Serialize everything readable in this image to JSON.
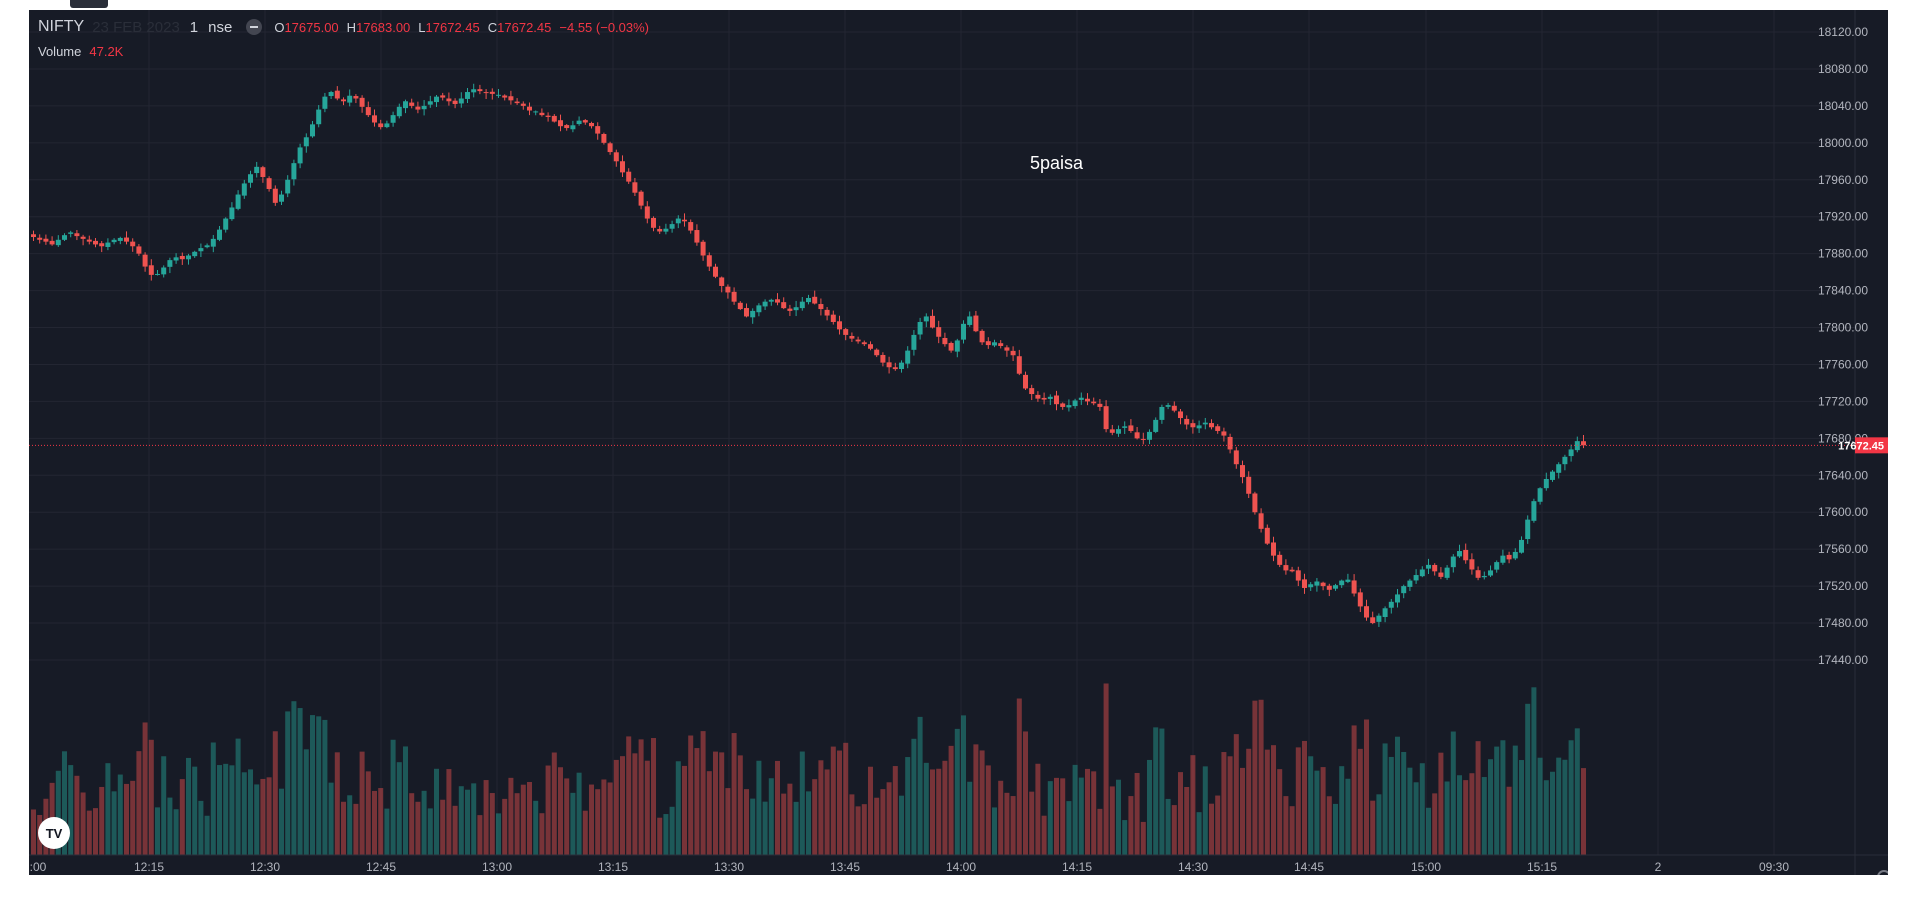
{
  "legend": {
    "symbol": "NIFTY",
    "date": "23 FEB 2023",
    "interval": "1",
    "exchange": "nse",
    "open_label": "O",
    "open": "17675.00",
    "high_label": "H",
    "high": "17683.00",
    "low_label": "L",
    "low": "17672.45",
    "close_label": "C",
    "close": "17672.45",
    "change": "−4.55 (−0.03%)"
  },
  "volume_legend": {
    "label": "Volume",
    "value": "47.2K"
  },
  "watermark": "5paisa",
  "logo_text": "TV",
  "icons": {
    "hide": "minus-circle-icon",
    "logo": "tradingview-logo-icon",
    "settings": "gear-icon"
  },
  "colors": {
    "background": "#171b26",
    "up": "#26a69a",
    "down": "#ef5350",
    "grid": "#232632",
    "text": "#b2b5be",
    "price_line": "#f23645"
  },
  "chart_data": {
    "type": "candlestick",
    "title": "",
    "xlabel": "",
    "ylabel": "",
    "ylim": [
      17400,
      18140
    ],
    "y_ticks": [
      "18120.00",
      "18080.00",
      "18040.00",
      "18000.00",
      "17960.00",
      "17920.00",
      "17880.00",
      "17840.00",
      "17800.00",
      "17760.00",
      "17720.00",
      "17680.00",
      "17640.00",
      "17600.00",
      "17560.00",
      "17520.00",
      "17480.00",
      "17440.00"
    ],
    "x_ticks": [
      ":00",
      "12:15",
      "12:30",
      "12:45",
      "13:00",
      "13:15",
      "13:30",
      "13:45",
      "14:00",
      "14:15",
      "14:30",
      "14:45",
      "15:00",
      "15:15",
      "2",
      "09:30"
    ],
    "last_price": "17672.45",
    "grid": true,
    "close_series": [
      17898,
      17895,
      17893,
      17890,
      17895,
      17900,
      17903,
      17899,
      17896,
      17893,
      17890,
      17888,
      17892,
      17895,
      17897,
      17893,
      17888,
      17880,
      17866,
      17857,
      17858,
      17865,
      17873,
      17876,
      17874,
      17878,
      17882,
      17886,
      17889,
      17896,
      17906,
      17918,
      17930,
      17944,
      17956,
      17966,
      17974,
      17963,
      17950,
      17935,
      17944,
      17960,
      17978,
      17995,
      18006,
      18020,
      18036,
      18050,
      18055,
      18048,
      18045,
      18051,
      18048,
      18039,
      18030,
      18022,
      18017,
      18021,
      18030,
      18039,
      18045,
      18040,
      18036,
      18040,
      18045,
      18050,
      18049,
      18045,
      18042,
      18048,
      18055,
      18058,
      18056,
      18054,
      18053,
      18052,
      18049,
      18046,
      18043,
      18040,
      18035,
      18034,
      18030,
      18028,
      18023,
      18018,
      18016,
      18019,
      18024,
      18022,
      18018,
      18010,
      18000,
      17990,
      17980,
      17968,
      17958,
      17946,
      17932,
      17918,
      17908,
      17904,
      17907,
      17912,
      17918,
      17915,
      17905,
      17892,
      17878,
      17866,
      17855,
      17845,
      17838,
      17828,
      17820,
      17812,
      17818,
      17824,
      17828,
      17830,
      17827,
      17821,
      17818,
      17822,
      17828,
      17832,
      17826,
      17820,
      17813,
      17806,
      17798,
      17792,
      17788,
      17785,
      17782,
      17777,
      17770,
      17762,
      17757,
      17755,
      17762,
      17775,
      17792,
      17806,
      17812,
      17800,
      17790,
      17782,
      17775,
      17786,
      17804,
      17812,
      17796,
      17784,
      17781,
      17784,
      17780,
      17775,
      17770,
      17750,
      17734,
      17728,
      17723,
      17722,
      17725,
      17717,
      17714,
      17716,
      17721,
      17724,
      17720,
      17718,
      17714,
      17690,
      17686,
      17690,
      17693,
      17688,
      17680,
      17679,
      17687,
      17700,
      17714,
      17716,
      17710,
      17702,
      17695,
      17692,
      17694,
      17697,
      17692,
      17688,
      17683,
      17668,
      17652,
      17638,
      17620,
      17600,
      17582,
      17566,
      17553,
      17543,
      17537,
      17536,
      17526,
      17518,
      17522,
      17525,
      17520,
      17516,
      17521,
      17526,
      17527,
      17512,
      17498,
      17486,
      17480,
      17488,
      17496,
      17503,
      17511,
      17520,
      17526,
      17532,
      17538,
      17543,
      17536,
      17530,
      17540,
      17552,
      17558,
      17548,
      17538,
      17529,
      17531,
      17537,
      17546,
      17553,
      17549,
      17557,
      17570,
      17592,
      17612,
      17626,
      17636,
      17644,
      17652,
      17660,
      17668,
      17677,
      17672.45
    ],
    "volume_ylim": [
      0,
      220000
    ]
  }
}
